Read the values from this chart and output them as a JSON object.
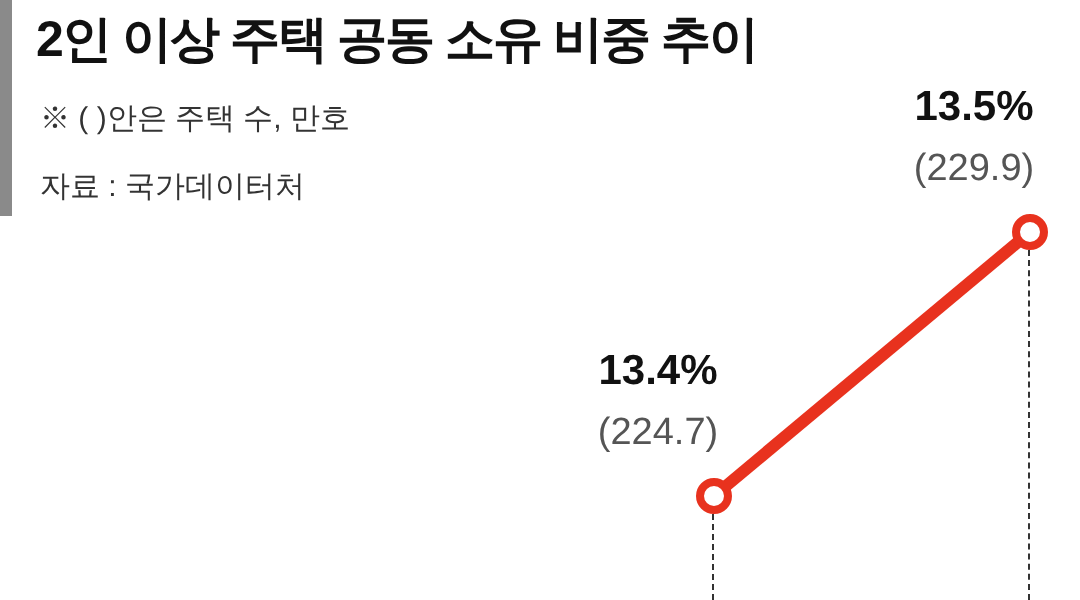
{
  "chart_data": {
    "type": "line",
    "title": "2인 이상 주택 공동 소유 비중 추이",
    "subtitle": "※ ( )안은 주택 수, 만호",
    "annotations": [
      "자료 : 국가데이터처"
    ],
    "categories": [
      null,
      null
    ],
    "series": [
      {
        "color": "#e8321e",
        "values": [
          13.4,
          13.5
        ],
        "value_labels": [
          "13.4%\n(224.7)",
          "13.5%\n(229.9)"
        ]
      }
    ],
    "tick_labels": false,
    "marker": "circle",
    "line_style": "solid",
    "legend": false
  }
}
